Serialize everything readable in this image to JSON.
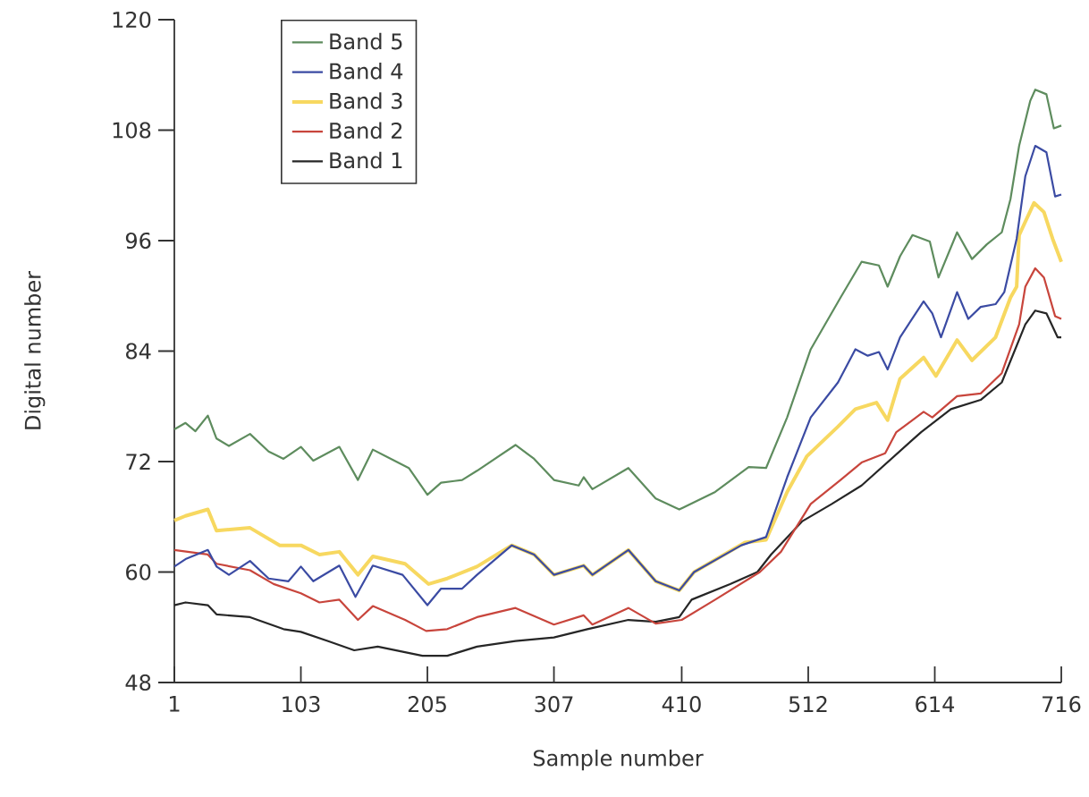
{
  "chart_data": {
    "type": "line",
    "xlabel": "Sample number",
    "ylabel": "Digital number",
    "xlim": [
      1,
      716
    ],
    "xticks": [
      1,
      103,
      205,
      307,
      410,
      512,
      614,
      716
    ],
    "ylim": [
      48,
      120
    ],
    "yticks": [
      48,
      60,
      72,
      84,
      96,
      108,
      120
    ],
    "legend": "top left",
    "grid": false,
    "series": [
      {
        "name": "Band 5",
        "color": "#5e8c5e",
        "x": [
          1,
          10,
          18,
          28,
          35,
          45,
          62,
          77,
          89,
          103,
          113,
          134,
          149,
          161,
          190,
          205,
          216,
          233,
          245,
          276,
          291,
          307,
          327,
          331,
          338,
          367,
          389,
          408,
          437,
          464,
          478,
          495,
          514,
          538,
          555,
          569,
          576,
          586,
          596,
          610,
          617,
          632,
          644,
          656,
          668,
          675,
          682,
          691,
          695,
          704,
          710,
          716
        ],
        "values": [
          75.5,
          76.2,
          75.3,
          77,
          74.5,
          73.7,
          75,
          73.1,
          72.3,
          73.6,
          72.1,
          73.6,
          70,
          73.3,
          71.3,
          68.4,
          69.7,
          70,
          71,
          73.8,
          72.3,
          70,
          69.4,
          70.3,
          69,
          71.3,
          68,
          66.8,
          68.7,
          71.4,
          71.3,
          76.8,
          84.2,
          89.8,
          93.7,
          93.3,
          91,
          94.3,
          96.6,
          95.9,
          92,
          96.9,
          94,
          95.6,
          96.9,
          100.5,
          106.3,
          111.2,
          112.4,
          111.9,
          108.2,
          108.5
        ]
      },
      {
        "name": "Band 4",
        "color": "#3b4ba3",
        "x": [
          1,
          10,
          28,
          35,
          45,
          62,
          77,
          93,
          103,
          113,
          134,
          147,
          161,
          185,
          205,
          216,
          233,
          245,
          273,
          291,
          307,
          331,
          338,
          367,
          389,
          408,
          420,
          458,
          478,
          495,
          514,
          536,
          550,
          560,
          569,
          576,
          586,
          605,
          612,
          619,
          632,
          641,
          651,
          663,
          670,
          680,
          687,
          695,
          704,
          711,
          716
        ],
        "values": [
          60.6,
          61.4,
          62.4,
          60.6,
          59.7,
          61.2,
          59.3,
          59,
          60.6,
          59,
          60.7,
          57.3,
          60.7,
          59.7,
          56.4,
          58.2,
          58.2,
          59.7,
          62.9,
          61.9,
          59.7,
          60.7,
          59.7,
          62.4,
          59,
          58,
          60,
          62.9,
          63.8,
          70.3,
          76.8,
          80.6,
          84.2,
          83.5,
          83.9,
          82,
          85.5,
          89.4,
          88.1,
          85.5,
          90.4,
          87.5,
          88.8,
          89.1,
          90.4,
          96.2,
          103,
          106.3,
          105.6,
          100.8,
          101
        ]
      },
      {
        "name": "Band 3",
        "color": "#f7d860",
        "x": [
          1,
          10,
          28,
          35,
          62,
          86,
          103,
          118,
          134,
          149,
          161,
          187,
          206,
          221,
          245,
          273,
          291,
          307,
          331,
          338,
          367,
          389,
          408,
          420,
          461,
          478,
          495,
          511,
          536,
          550,
          567,
          576,
          586,
          605,
          615,
          632,
          644,
          663,
          675,
          680,
          682,
          694,
          702,
          709,
          716
        ],
        "values": [
          65.6,
          66.1,
          66.8,
          64.5,
          64.8,
          62.9,
          62.9,
          61.9,
          62.2,
          59.7,
          61.7,
          60.9,
          58.7,
          59.3,
          60.6,
          62.9,
          61.9,
          59.7,
          60.7,
          59.7,
          62.4,
          59,
          58,
          60,
          63.2,
          63.5,
          68.7,
          72.6,
          75.8,
          77.7,
          78.4,
          76.5,
          81,
          83.3,
          81.3,
          85.2,
          83,
          85.5,
          89.8,
          91,
          96.6,
          100.1,
          99.1,
          96.2,
          93.7
        ]
      },
      {
        "name": "Band 2",
        "color": "#c8453c",
        "x": [
          1,
          28,
          35,
          62,
          81,
          103,
          118,
          134,
          149,
          161,
          187,
          204,
          221,
          245,
          276,
          307,
          331,
          338,
          367,
          389,
          410,
          437,
          473,
          490,
          514,
          538,
          555,
          574,
          583,
          605,
          612,
          632,
          651,
          668,
          682,
          687,
          695,
          702,
          711,
          716
        ],
        "values": [
          62.4,
          61.9,
          60.9,
          60.2,
          58.7,
          57.7,
          56.7,
          57,
          54.8,
          56.3,
          54.8,
          53.6,
          53.8,
          55.1,
          56.1,
          54.3,
          55.3,
          54.3,
          56.1,
          54.4,
          54.8,
          57,
          60,
          62.2,
          67.4,
          70,
          71.9,
          72.9,
          75.2,
          77.4,
          76.8,
          79.1,
          79.4,
          81.6,
          86.9,
          91,
          93,
          92,
          87.8,
          87.5
        ]
      },
      {
        "name": "Band 1",
        "color": "#262626",
        "x": [
          1,
          10,
          28,
          35,
          62,
          89,
          103,
          125,
          146,
          165,
          201,
          221,
          245,
          276,
          307,
          334,
          367,
          389,
          408,
          418,
          449,
          471,
          482,
          507,
          531,
          555,
          579,
          603,
          627,
          651,
          668,
          687,
          695,
          704,
          713,
          716
        ],
        "values": [
          56.4,
          56.7,
          56.4,
          55.4,
          55.1,
          53.8,
          53.5,
          52.5,
          51.5,
          51.9,
          50.9,
          50.9,
          51.9,
          52.5,
          52.9,
          53.8,
          54.8,
          54.6,
          55.1,
          57,
          58.7,
          60,
          61.9,
          65.5,
          67.4,
          69.4,
          72.3,
          75.2,
          77.7,
          78.7,
          80.6,
          86.9,
          88.4,
          88.1,
          85.5,
          85.5
        ]
      }
    ]
  }
}
